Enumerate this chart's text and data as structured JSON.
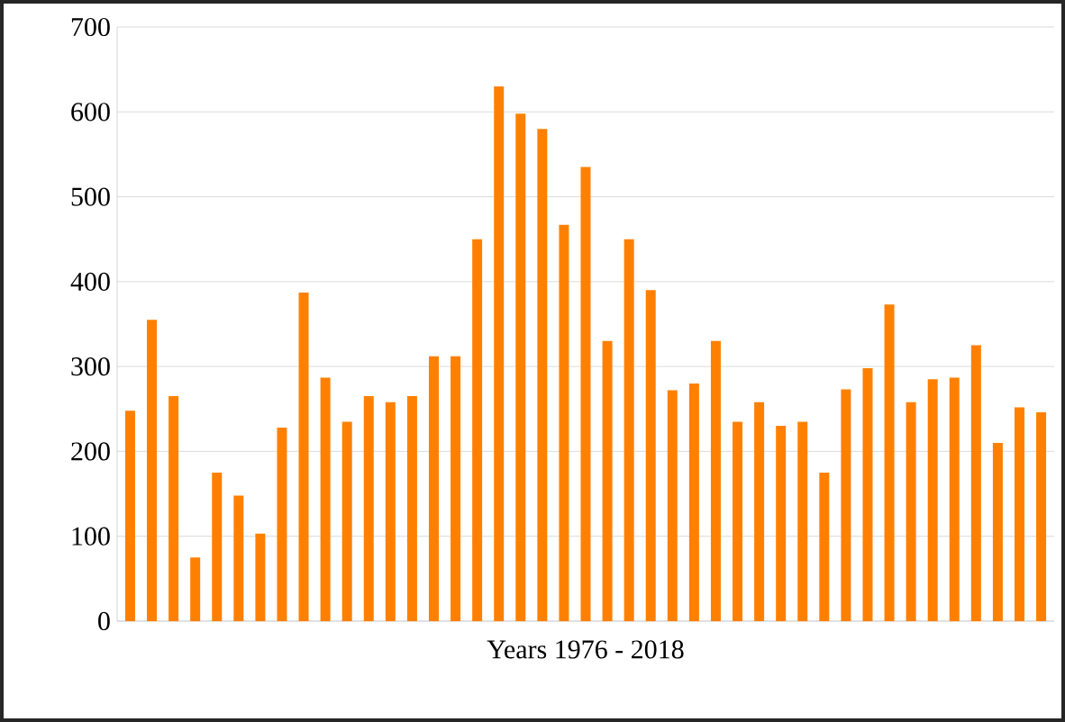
{
  "chart_data": {
    "type": "bar",
    "xlabel": "Years 1976 - 2018",
    "categories": [
      null,
      null,
      null,
      null,
      null,
      null,
      null,
      null,
      null,
      null,
      null,
      null,
      null,
      null,
      null,
      null,
      null,
      null,
      null,
      null,
      null,
      null,
      null,
      null,
      null,
      null,
      null,
      null,
      null,
      null,
      null,
      null,
      null,
      null,
      null,
      null,
      null,
      null,
      null,
      null,
      null,
      null,
      null
    ],
    "values": [
      248,
      355,
      265,
      75,
      175,
      148,
      103,
      228,
      387,
      287,
      235,
      265,
      258,
      265,
      312,
      312,
      450,
      630,
      598,
      580,
      467,
      535,
      330,
      450,
      390,
      272,
      280,
      330,
      235,
      258,
      230,
      235,
      175,
      273,
      298,
      373,
      258,
      285,
      287,
      325,
      210,
      252,
      246
    ],
    "color": "#ff8000",
    "ylim": [
      0,
      700
    ],
    "yticks": [
      0,
      100,
      200,
      300,
      400,
      500,
      600,
      700
    ],
    "grid": "y"
  }
}
